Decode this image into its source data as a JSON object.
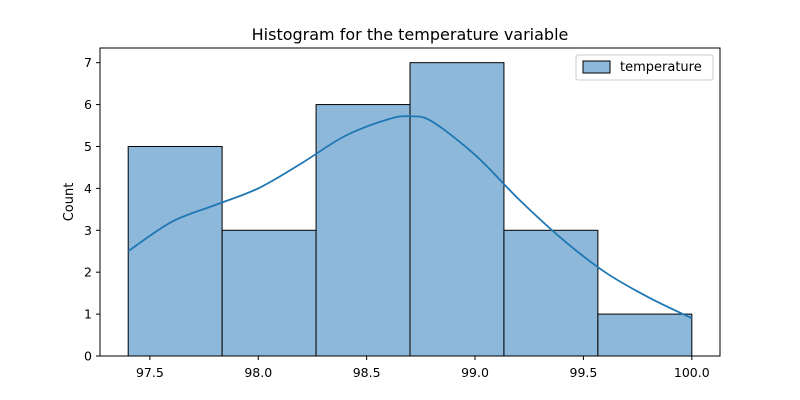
{
  "chart_data": {
    "type": "bar",
    "title": "Histogram for the temperature variable",
    "xlabel": "",
    "ylabel": "Count",
    "xlim": [
      97.27,
      100.13
    ],
    "ylim": [
      0,
      7.35
    ],
    "bin_edges": [
      97.4,
      97.8333,
      98.2667,
      98.7,
      99.1333,
      99.5667,
      100.0
    ],
    "values": [
      5,
      3,
      6,
      7,
      3,
      1
    ],
    "x_ticks": [
      97.5,
      98.0,
      98.5,
      99.0,
      99.5,
      100.0
    ],
    "x_tick_labels": [
      "97.5",
      "98.0",
      "98.5",
      "99.0",
      "99.5",
      "100.0"
    ],
    "y_ticks": [
      0,
      1,
      2,
      3,
      4,
      5,
      6,
      7
    ],
    "y_tick_labels": [
      "0",
      "1",
      "2",
      "3",
      "4",
      "5",
      "6",
      "7"
    ],
    "kde": {
      "x": [
        97.4,
        97.6,
        97.8,
        98.0,
        98.2,
        98.4,
        98.6,
        98.7,
        98.8,
        99.0,
        99.2,
        99.4,
        99.6,
        99.8,
        100.0
      ],
      "y": [
        2.5,
        3.2,
        3.6,
        4.0,
        4.6,
        5.25,
        5.65,
        5.72,
        5.6,
        4.8,
        3.75,
        2.8,
        2.0,
        1.4,
        0.9
      ]
    },
    "legend": {
      "entries": [
        "temperature"
      ],
      "position": "top-right"
    },
    "grid": false,
    "colors": {
      "bar_fill": "#8db8da",
      "bar_edge": "#000000",
      "kde_line": "#1f77b4"
    }
  }
}
